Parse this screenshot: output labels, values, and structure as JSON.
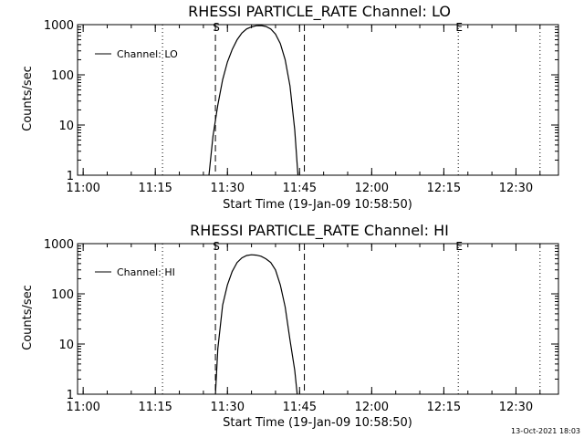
{
  "stamp": "13-Oct-2021 18:03",
  "chart_data": [
    {
      "type": "line",
      "title": "RHESSI PARTICLE_RATE Channel: LO",
      "xlabel": "Start Time (19-Jan-09 10:58:50)",
      "ylabel": "Counts/sec",
      "y_scale": "log",
      "ylim": [
        1,
        1000
      ],
      "y_ticks": [
        1,
        10,
        100,
        1000
      ],
      "y_tick_labels": [
        "1",
        "10",
        "100",
        "1000"
      ],
      "xlim": [
        "10:58:50",
        "12:38:50"
      ],
      "x_ticks": [
        "11:00",
        "11:15",
        "11:30",
        "11:45",
        "12:00",
        "12:15",
        "12:30"
      ],
      "legend": "Channel: LO",
      "legend_position": "top-left",
      "markers": [
        {
          "label": "S",
          "time": "11:27:30",
          "style": "dashed"
        },
        {
          "label": "",
          "time": "11:46:00",
          "style": "dashed"
        },
        {
          "label": "E",
          "time": "12:18:00",
          "style": "dotted"
        }
      ],
      "dotted_lines": [
        "11:16:30",
        "12:35:00"
      ],
      "series": [
        {
          "x": [
            "11:26:10",
            "11:27:00",
            "11:28:00",
            "11:29:00",
            "11:30:00",
            "11:31:00",
            "11:32:00",
            "11:33:00",
            "11:34:00",
            "11:35:00",
            "11:36:00",
            "11:37:00",
            "11:38:00",
            "11:39:00",
            "11:40:00",
            "11:41:00",
            "11:42:00",
            "11:43:00",
            "11:44:00",
            "11:44:40"
          ],
          "values": [
            1,
            6,
            25,
            80,
            180,
            320,
            500,
            680,
            820,
            900,
            950,
            960,
            920,
            820,
            650,
            420,
            200,
            60,
            8,
            1
          ]
        }
      ]
    },
    {
      "type": "line",
      "title": "RHESSI PARTICLE_RATE Channel: HI",
      "xlabel": "Start Time (19-Jan-09 10:58:50)",
      "ylabel": "Counts/sec",
      "y_scale": "log",
      "ylim": [
        1,
        1000
      ],
      "y_ticks": [
        1,
        10,
        100,
        1000
      ],
      "y_tick_labels": [
        "1",
        "10",
        "100",
        "1000"
      ],
      "xlim": [
        "10:58:50",
        "12:38:50"
      ],
      "x_ticks": [
        "11:00",
        "11:15",
        "11:30",
        "11:45",
        "12:00",
        "12:15",
        "12:30"
      ],
      "legend": "Channel: HI",
      "legend_position": "top-left",
      "markers": [
        {
          "label": "S",
          "time": "11:27:30",
          "style": "dashed"
        },
        {
          "label": "",
          "time": "11:46:00",
          "style": "dashed"
        },
        {
          "label": "E",
          "time": "12:18:00",
          "style": "dotted"
        }
      ],
      "dotted_lines": [
        "11:16:30",
        "12:35:00"
      ],
      "series": [
        {
          "x": [
            "11:27:30",
            "11:28:00",
            "11:29:00",
            "11:30:00",
            "11:31:00",
            "11:32:00",
            "11:33:00",
            "11:34:00",
            "11:35:00",
            "11:36:00",
            "11:37:00",
            "11:38:00",
            "11:39:00",
            "11:40:00",
            "11:41:00",
            "11:42:00",
            "11:43:00",
            "11:44:00",
            "11:44:30"
          ],
          "values": [
            1,
            8,
            60,
            150,
            280,
            420,
            520,
            580,
            600,
            590,
            560,
            500,
            420,
            300,
            150,
            55,
            12,
            3,
            1
          ]
        }
      ]
    }
  ]
}
